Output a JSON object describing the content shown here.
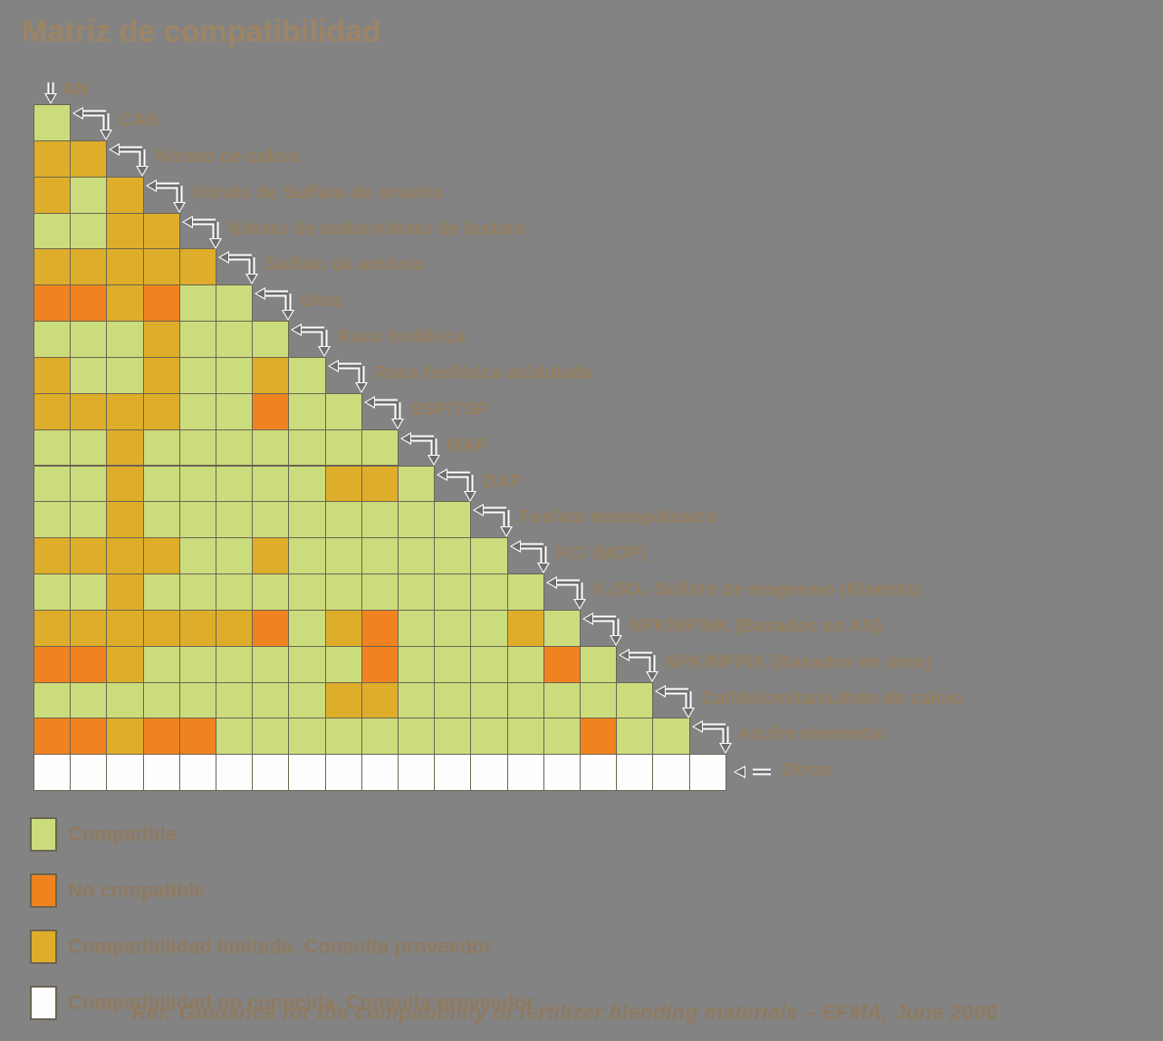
{
  "title": "Matriz de compatibilidad",
  "chart_data": {
    "type": "heatmap",
    "title": "Matriz de compatibilidad",
    "materials": [
      "AN",
      "CAN",
      "Nitrato de calcio",
      "Nitrato de Sulfato de amonio",
      "Nitrato de sodio/nitrato de fosfato",
      "Sulfato de amónio",
      "Urea",
      "Roca fosfórica",
      "Roca fosfórica acidulada",
      "SSP/TSP",
      "MAP",
      "DAP",
      "Fosfato monopótasico",
      "KCl (MOP)",
      "K₂SO₄ Sulfato de magnesio (Kiserita)",
      "NPK/NP/NK (Basados en AN)",
      "NPK/NP/NK (Basados en úrea)",
      "Cal/dolomita/sulfato de calcio",
      "Azufre elemental",
      "Otros"
    ],
    "codes": {
      "C": "Compatible",
      "N": "No compatible",
      "L": "Compatibilidad limitada. Consulta proveedor",
      "U": "Compatibilidad no conocida. Consulta proveedor"
    },
    "colors": {
      "C": "#cbdc7d",
      "N": "#f0831f",
      "L": "#deae2b",
      "U": "#fefefe"
    },
    "rows": [
      {
        "material": "CAN",
        "values": [
          "C"
        ]
      },
      {
        "material": "Nitrato de calcio",
        "values": [
          "L",
          "L"
        ]
      },
      {
        "material": "Nitrato de Sulfato de amonio",
        "values": [
          "L",
          "C",
          "L"
        ]
      },
      {
        "material": "Nitrato de sodio/nitrato de fosfato",
        "values": [
          "C",
          "C",
          "L",
          "L"
        ]
      },
      {
        "material": "Sulfato de amónio",
        "values": [
          "L",
          "L",
          "L",
          "L",
          "L"
        ]
      },
      {
        "material": "Urea",
        "values": [
          "N",
          "N",
          "L",
          "N",
          "C",
          "C"
        ]
      },
      {
        "material": "Roca fosfórica",
        "values": [
          "C",
          "C",
          "C",
          "L",
          "C",
          "C",
          "C"
        ]
      },
      {
        "material": "Roca fosfórica acidulada",
        "values": [
          "L",
          "C",
          "C",
          "L",
          "C",
          "C",
          "L",
          "C"
        ]
      },
      {
        "material": "SSP/TSP",
        "values": [
          "L",
          "L",
          "L",
          "L",
          "C",
          "C",
          "N",
          "C",
          "C"
        ]
      },
      {
        "material": "MAP",
        "values": [
          "C",
          "C",
          "L",
          "C",
          "C",
          "C",
          "C",
          "C",
          "C",
          "C"
        ]
      },
      {
        "material": "DAP",
        "values": [
          "C",
          "C",
          "L",
          "C",
          "C",
          "C",
          "C",
          "C",
          "L",
          "L",
          "C"
        ]
      },
      {
        "material": "Fosfato monopótasico",
        "values": [
          "C",
          "C",
          "L",
          "C",
          "C",
          "C",
          "C",
          "C",
          "C",
          "C",
          "C",
          "C"
        ]
      },
      {
        "material": "KCl (MOP)",
        "values": [
          "L",
          "L",
          "L",
          "L",
          "C",
          "C",
          "L",
          "C",
          "C",
          "C",
          "C",
          "C",
          "C"
        ]
      },
      {
        "material": "K₂SO₄ Sulfato de magnesio (Kiserita)",
        "values": [
          "C",
          "C",
          "L",
          "C",
          "C",
          "C",
          "C",
          "C",
          "C",
          "C",
          "C",
          "C",
          "C",
          "C"
        ]
      },
      {
        "material": "NPK/NP/NK (Basados en AN)",
        "values": [
          "L",
          "L",
          "L",
          "L",
          "L",
          "L",
          "N",
          "C",
          "L",
          "N",
          "C",
          "C",
          "C",
          "L",
          "C"
        ]
      },
      {
        "material": "NPK/NP/NK (Basados en úrea)",
        "values": [
          "N",
          "N",
          "L",
          "C",
          "C",
          "C",
          "C",
          "C",
          "C",
          "N",
          "C",
          "C",
          "C",
          "C",
          "N",
          "C"
        ]
      },
      {
        "material": "Cal/dolomita/sulfato de calcio",
        "values": [
          "C",
          "C",
          "C",
          "C",
          "C",
          "C",
          "C",
          "C",
          "L",
          "L",
          "C",
          "C",
          "C",
          "C",
          "C",
          "C",
          "C"
        ]
      },
      {
        "material": "Azufre elemental",
        "values": [
          "N",
          "N",
          "L",
          "N",
          "N",
          "C",
          "C",
          "C",
          "C",
          "C",
          "C",
          "C",
          "C",
          "C",
          "C",
          "N",
          "C",
          "C"
        ]
      },
      {
        "material": "Otros",
        "values": [
          "U",
          "U",
          "U",
          "U",
          "U",
          "U",
          "U",
          "U",
          "U",
          "U",
          "U",
          "U",
          "U",
          "U",
          "U",
          "U",
          "U",
          "U",
          "U"
        ]
      }
    ],
    "legend_position": "bottom-left",
    "grid": true
  },
  "legend": {
    "items": [
      {
        "code": "C",
        "slug": "compatible",
        "label": "Compatible"
      },
      {
        "code": "N",
        "slug": "no-compatible",
        "label": "No compatible"
      },
      {
        "code": "L",
        "slug": "compatibilidad-limitada",
        "label": "Compatibilidad limitada. Consulta proveedor"
      },
      {
        "code": "U",
        "slug": "compatibilidad-no-conocida",
        "label": "Compatibilidad no conocida. Consulta proveedor"
      }
    ]
  },
  "footer": {
    "reference": "Ref: Guidance for the compatibility of fertilizer blending materials – EFMA, June 2006"
  },
  "ui_colors": {
    "background": "#838383",
    "grid_line": "#6b6350",
    "label_text": "#97805f",
    "title_text": "#9c8566",
    "arrow": "#6e6e6e"
  }
}
